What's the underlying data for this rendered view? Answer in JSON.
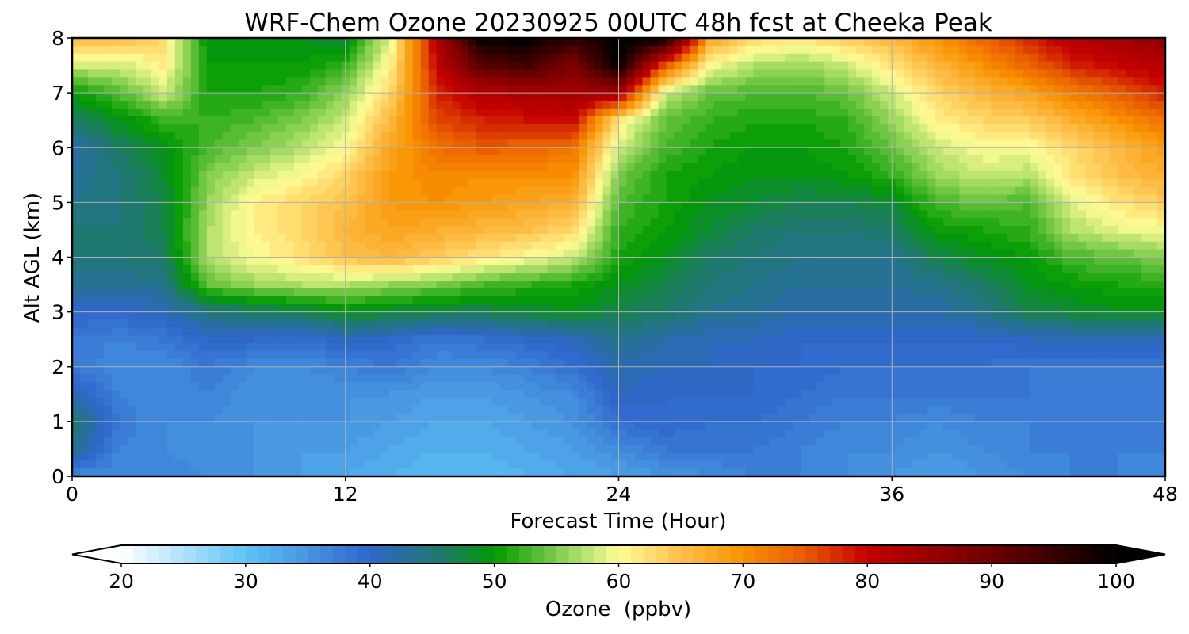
{
  "chart_data": {
    "type": "heatmap",
    "title": "WRF-Chem Ozone  20230925 00UTC 48h fcst at Cheeka Peak",
    "xlabel": "Forecast Time (Hour)",
    "ylabel": "Alt AGL (km)",
    "xlim": [
      0,
      48
    ],
    "ylim": [
      0,
      8
    ],
    "x_ticks": [
      0,
      12,
      24,
      36,
      48
    ],
    "y_ticks": [
      0,
      1,
      2,
      3,
      4,
      5,
      6,
      7,
      8
    ],
    "grid": true,
    "colorbar": {
      "label": "Ozone  (ppbv)",
      "min": 20,
      "max": 100,
      "step": 1,
      "ticks": [
        20,
        30,
        40,
        50,
        60,
        70,
        80,
        90,
        100
      ],
      "extend": "both",
      "stops": [
        {
          "v": 20,
          "c": "#ffffff"
        },
        {
          "v": 30,
          "c": "#5ec3f5"
        },
        {
          "v": 40,
          "c": "#2f66cc"
        },
        {
          "v": 46,
          "c": "#1e7a68"
        },
        {
          "v": 50,
          "c": "#009a00"
        },
        {
          "v": 55,
          "c": "#7dcc4c"
        },
        {
          "v": 60,
          "c": "#fffd98"
        },
        {
          "v": 65,
          "c": "#fdbf4a"
        },
        {
          "v": 70,
          "c": "#f99200"
        },
        {
          "v": 75,
          "c": "#e85a00"
        },
        {
          "v": 80,
          "c": "#c40000"
        },
        {
          "v": 90,
          "c": "#6e0000"
        },
        {
          "v": 100,
          "c": "#000000"
        }
      ]
    },
    "grid_x": [
      0,
      2,
      4,
      6,
      8,
      10,
      12,
      14,
      16,
      18,
      20,
      22,
      24,
      26,
      28,
      30,
      32,
      34,
      36,
      38,
      40,
      42,
      44,
      46,
      48
    ],
    "grid_y": [
      0,
      0.5,
      1,
      1.5,
      2,
      2.5,
      3,
      3.5,
      4,
      4.5,
      5,
      5.5,
      6,
      6.5,
      7,
      7.5,
      8
    ],
    "values": [
      [
        36,
        36,
        37,
        36,
        35,
        34,
        33,
        32,
        31,
        31,
        32,
        33,
        34,
        35,
        36,
        37,
        37,
        36,
        35,
        34,
        35,
        36,
        37,
        37,
        36
      ],
      [
        44,
        37,
        36,
        35,
        35,
        34,
        34,
        33,
        32,
        32,
        33,
        34,
        36,
        38,
        38,
        38,
        37,
        36,
        36,
        35,
        36,
        37,
        37,
        37,
        37
      ],
      [
        46,
        38,
        36,
        36,
        35,
        35,
        35,
        34,
        33,
        33,
        34,
        35,
        39,
        40,
        39,
        39,
        38,
        37,
        37,
        36,
        37,
        37,
        37,
        37,
        37
      ],
      [
        42,
        37,
        36,
        37,
        35,
        35,
        35,
        35,
        34,
        34,
        35,
        36,
        41,
        40,
        40,
        40,
        39,
        38,
        38,
        38,
        38,
        38,
        37,
        37,
        37
      ],
      [
        38,
        36,
        36,
        38,
        36,
        36,
        37,
        38,
        36,
        36,
        37,
        39,
        42,
        41,
        41,
        40,
        40,
        39,
        39,
        39,
        39,
        38,
        38,
        38,
        38
      ],
      [
        38,
        37,
        38,
        40,
        40,
        39,
        41,
        40,
        38,
        39,
        40,
        41,
        44,
        42,
        41,
        41,
        40,
        40,
        40,
        40,
        40,
        41,
        41,
        41,
        41
      ],
      [
        40,
        40,
        41,
        45,
        46,
        47,
        49,
        48,
        47,
        47,
        48,
        49,
        47,
        46,
        44,
        43,
        42,
        42,
        42,
        42,
        44,
        47,
        48,
        49,
        49
      ],
      [
        43,
        43,
        44,
        54,
        56,
        57,
        57,
        56,
        55,
        53,
        52,
        51,
        49,
        47,
        45,
        44,
        43,
        43,
        43,
        44,
        46,
        49,
        50,
        51,
        51
      ],
      [
        45,
        45,
        46,
        57,
        60,
        62,
        65,
        66,
        64,
        62,
        60,
        58,
        51,
        49,
        46,
        45,
        44,
        44,
        44,
        47,
        49,
        50,
        53,
        54,
        55
      ],
      [
        45,
        45,
        47,
        57,
        61,
        63,
        66,
        68,
        67,
        66,
        65,
        63,
        52,
        50,
        48,
        46,
        45,
        45,
        46,
        50,
        51,
        52,
        57,
        59,
        60
      ],
      [
        44,
        45,
        47,
        56,
        61,
        63,
        65,
        69,
        70,
        69,
        68,
        67,
        53,
        51,
        49,
        48,
        47,
        47,
        48,
        53,
        54,
        53,
        59,
        62,
        64
      ],
      [
        43,
        45,
        48,
        55,
        58,
        60,
        63,
        69,
        71,
        70,
        70,
        70,
        55,
        51,
        50,
        49,
        49,
        50,
        52,
        56,
        58,
        57,
        62,
        65,
        67
      ],
      [
        42,
        46,
        49,
        53,
        55,
        57,
        60,
        68,
        73,
        75,
        74,
        73,
        58,
        53,
        51,
        50,
        50,
        51,
        54,
        58,
        60,
        60,
        63,
        66,
        69
      ],
      [
        46,
        49,
        52,
        52,
        53,
        55,
        58,
        66,
        76,
        78,
        79,
        80,
        62,
        54,
        52,
        51,
        51,
        52,
        56,
        61,
        63,
        64,
        67,
        70,
        73
      ],
      [
        50,
        53,
        58,
        51,
        51,
        52,
        56,
        63,
        78,
        82,
        83,
        84,
        84,
        58,
        54,
        53,
        53,
        54,
        58,
        63,
        66,
        68,
        72,
        75,
        78
      ],
      [
        58,
        58,
        61,
        50,
        50,
        50,
        52,
        61,
        80,
        92,
        94,
        88,
        100,
        75,
        60,
        57,
        56,
        58,
        62,
        66,
        70,
        74,
        78,
        80,
        82
      ],
      [
        66,
        66,
        63,
        49,
        49,
        49,
        48,
        59,
        82,
        100,
        100,
        96,
        100,
        100,
        68,
        63,
        62,
        64,
        66,
        70,
        74,
        78,
        82,
        84,
        86
      ]
    ]
  }
}
